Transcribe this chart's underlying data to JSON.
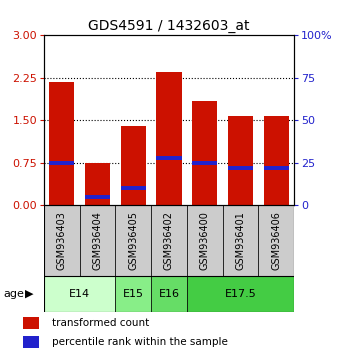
{
  "title": "GDS4591 / 1432603_at",
  "samples": [
    "GSM936403",
    "GSM936404",
    "GSM936405",
    "GSM936402",
    "GSM936400",
    "GSM936401",
    "GSM936406"
  ],
  "transformed_count": [
    2.18,
    0.75,
    1.4,
    2.35,
    1.85,
    1.58,
    1.58
  ],
  "percentile_rank": [
    25,
    5,
    10,
    28,
    25,
    22,
    22
  ],
  "age_groups": [
    {
      "label": "E14",
      "samples": [
        "GSM936403",
        "GSM936404"
      ],
      "color": "#ccffcc"
    },
    {
      "label": "E15",
      "samples": [
        "GSM936405"
      ],
      "color": "#88ee88"
    },
    {
      "label": "E16",
      "samples": [
        "GSM936402"
      ],
      "color": "#66dd66"
    },
    {
      "label": "E17.5",
      "samples": [
        "GSM936400",
        "GSM936401",
        "GSM936406"
      ],
      "color": "#44cc44"
    }
  ],
  "ylim_left": [
    0,
    3
  ],
  "ylim_right": [
    0,
    100
  ],
  "yticks_left": [
    0,
    0.75,
    1.5,
    2.25,
    3
  ],
  "yticks_right": [
    0,
    25,
    50,
    75,
    100
  ],
  "bar_color": "#cc1100",
  "marker_color": "#2222cc",
  "bar_width": 0.7,
  "sample_bg": "#cccccc",
  "legend_items": [
    "transformed count",
    "percentile rank within the sample"
  ]
}
